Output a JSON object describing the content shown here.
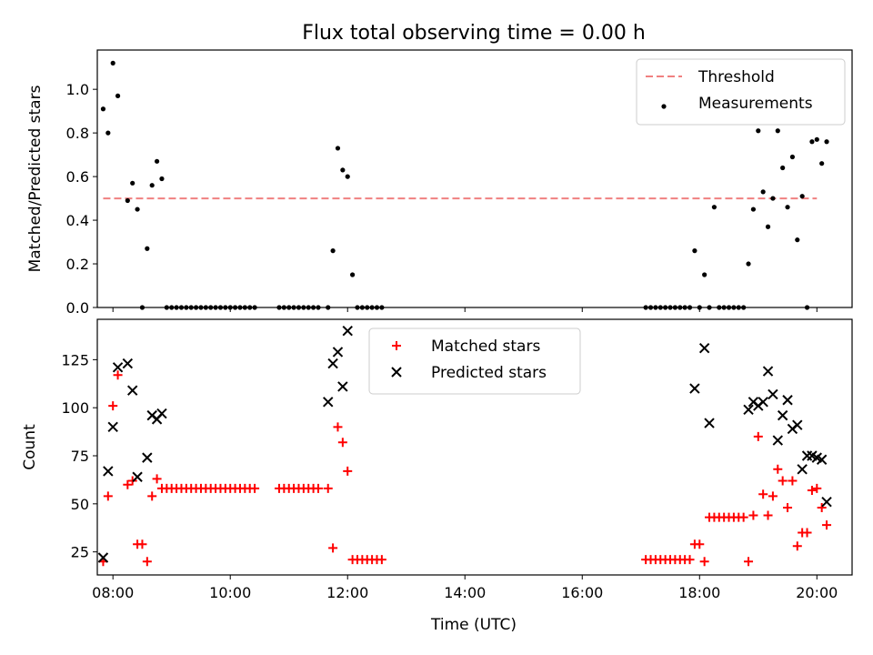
{
  "chart_data": {
    "title": "Flux total observing time = 0.00 h",
    "xlabel": "Time (UTC)",
    "xlim": [
      "07:44",
      "20:36"
    ],
    "x_ticks": [
      "08:00",
      "10:00",
      "12:00",
      "14:00",
      "16:00",
      "18:00",
      "20:00"
    ],
    "panels": [
      {
        "type": "scatter",
        "ylabel": "Matched/Predicted stars",
        "ylim": [
          0,
          1.18
        ],
        "y_ticks": [
          "0.0",
          "0.2",
          "0.4",
          "0.6",
          "0.8",
          "1.0"
        ],
        "legend_position": "upper right",
        "threshold": {
          "name": "Threshold",
          "value": 0.5,
          "x_range": [
            "07:50",
            "20:00"
          ],
          "color": "#f08080",
          "style": "dashed"
        },
        "series": [
          {
            "name": "Measurements",
            "marker": "dot",
            "color": "#000000",
            "points": [
              [
                "07:50",
                0.91
              ],
              [
                "07:55",
                0.8
              ],
              [
                "08:00",
                1.12
              ],
              [
                "08:05",
                0.97
              ],
              [
                "08:15",
                0.49
              ],
              [
                "08:20",
                0.57
              ],
              [
                "08:25",
                0.45
              ],
              [
                "08:30",
                0.0
              ],
              [
                "08:35",
                0.27
              ],
              [
                "08:40",
                0.56
              ],
              [
                "08:45",
                0.67
              ],
              [
                "08:50",
                0.59
              ],
              [
                "08:55",
                0.0
              ],
              [
                "09:00",
                0.0
              ],
              [
                "09:05",
                0.0
              ],
              [
                "09:10",
                0.0
              ],
              [
                "09:15",
                0.0
              ],
              [
                "09:20",
                0.0
              ],
              [
                "09:25",
                0.0
              ],
              [
                "09:30",
                0.0
              ],
              [
                "09:35",
                0.0
              ],
              [
                "09:40",
                0.0
              ],
              [
                "09:45",
                0.0
              ],
              [
                "09:50",
                0.0
              ],
              [
                "09:55",
                0.0
              ],
              [
                "10:00",
                0.0
              ],
              [
                "10:05",
                0.0
              ],
              [
                "10:10",
                0.0
              ],
              [
                "10:15",
                0.0
              ],
              [
                "10:20",
                0.0
              ],
              [
                "10:25",
                0.0
              ],
              [
                "10:50",
                0.0
              ],
              [
                "10:55",
                0.0
              ],
              [
                "11:00",
                0.0
              ],
              [
                "11:05",
                0.0
              ],
              [
                "11:10",
                0.0
              ],
              [
                "11:15",
                0.0
              ],
              [
                "11:20",
                0.0
              ],
              [
                "11:25",
                0.0
              ],
              [
                "11:30",
                0.0
              ],
              [
                "11:40",
                0.0
              ],
              [
                "11:45",
                0.26
              ],
              [
                "11:50",
                0.73
              ],
              [
                "11:55",
                0.63
              ],
              [
                "12:00",
                0.6
              ],
              [
                "12:05",
                0.15
              ],
              [
                "12:10",
                0.0
              ],
              [
                "12:15",
                0.0
              ],
              [
                "12:20",
                0.0
              ],
              [
                "12:25",
                0.0
              ],
              [
                "12:30",
                0.0
              ],
              [
                "12:35",
                0.0
              ],
              [
                "17:05",
                0.0
              ],
              [
                "17:10",
                0.0
              ],
              [
                "17:15",
                0.0
              ],
              [
                "17:20",
                0.0
              ],
              [
                "17:25",
                0.0
              ],
              [
                "17:30",
                0.0
              ],
              [
                "17:35",
                0.0
              ],
              [
                "17:40",
                0.0
              ],
              [
                "17:45",
                0.0
              ],
              [
                "17:50",
                0.0
              ],
              [
                "17:55",
                0.26
              ],
              [
                "18:00",
                0.0
              ],
              [
                "18:05",
                0.15
              ],
              [
                "18:10",
                0.0
              ],
              [
                "18:15",
                0.46
              ],
              [
                "18:20",
                0.0
              ],
              [
                "18:25",
                0.0
              ],
              [
                "18:30",
                0.0
              ],
              [
                "18:35",
                0.0
              ],
              [
                "18:40",
                0.0
              ],
              [
                "18:45",
                0.0
              ],
              [
                "18:50",
                0.2
              ],
              [
                "18:55",
                0.45
              ],
              [
                "19:00",
                0.81
              ],
              [
                "19:05",
                0.53
              ],
              [
                "19:10",
                0.37
              ],
              [
                "19:15",
                0.5
              ],
              [
                "19:20",
                0.81
              ],
              [
                "19:25",
                0.64
              ],
              [
                "19:30",
                0.46
              ],
              [
                "19:35",
                0.69
              ],
              [
                "19:40",
                0.31
              ],
              [
                "19:45",
                0.51
              ],
              [
                "19:50",
                0.0
              ],
              [
                "19:55",
                0.76
              ],
              [
                "20:00",
                0.77
              ],
              [
                "20:05",
                0.66
              ],
              [
                "20:10",
                0.76
              ]
            ]
          }
        ]
      },
      {
        "type": "scatter",
        "ylabel": "Count",
        "ylim": [
          13,
          146
        ],
        "y_ticks": [
          "25",
          "50",
          "75",
          "100",
          "125"
        ],
        "legend_position": "upper center",
        "series": [
          {
            "name": "Matched stars",
            "marker": "plus",
            "color": "#ff0000",
            "points": [
              [
                "07:50",
                20
              ],
              [
                "07:55",
                54
              ],
              [
                "08:00",
                101
              ],
              [
                "08:05",
                117
              ],
              [
                "08:15",
                60
              ],
              [
                "08:20",
                62
              ],
              [
                "08:25",
                29
              ],
              [
                "08:30",
                29
              ],
              [
                "08:35",
                20
              ],
              [
                "08:40",
                54
              ],
              [
                "08:45",
                63
              ],
              [
                "08:50",
                58
              ],
              [
                "08:55",
                58
              ],
              [
                "09:00",
                58
              ],
              [
                "09:05",
                58
              ],
              [
                "09:10",
                58
              ],
              [
                "09:15",
                58
              ],
              [
                "09:20",
                58
              ],
              [
                "09:25",
                58
              ],
              [
                "09:30",
                58
              ],
              [
                "09:35",
                58
              ],
              [
                "09:40",
                58
              ],
              [
                "09:45",
                58
              ],
              [
                "09:50",
                58
              ],
              [
                "09:55",
                58
              ],
              [
                "10:00",
                58
              ],
              [
                "10:05",
                58
              ],
              [
                "10:10",
                58
              ],
              [
                "10:15",
                58
              ],
              [
                "10:20",
                58
              ],
              [
                "10:25",
                58
              ],
              [
                "10:50",
                58
              ],
              [
                "10:55",
                58
              ],
              [
                "11:00",
                58
              ],
              [
                "11:05",
                58
              ],
              [
                "11:10",
                58
              ],
              [
                "11:15",
                58
              ],
              [
                "11:20",
                58
              ],
              [
                "11:25",
                58
              ],
              [
                "11:30",
                58
              ],
              [
                "11:40",
                58
              ],
              [
                "11:45",
                27
              ],
              [
                "11:50",
                90
              ],
              [
                "11:55",
                82
              ],
              [
                "12:00",
                67
              ],
              [
                "12:05",
                21
              ],
              [
                "12:10",
                21
              ],
              [
                "12:15",
                21
              ],
              [
                "12:20",
                21
              ],
              [
                "12:25",
                21
              ],
              [
                "12:30",
                21
              ],
              [
                "12:35",
                21
              ],
              [
                "17:05",
                21
              ],
              [
                "17:10",
                21
              ],
              [
                "17:15",
                21
              ],
              [
                "17:20",
                21
              ],
              [
                "17:25",
                21
              ],
              [
                "17:30",
                21
              ],
              [
                "17:35",
                21
              ],
              [
                "17:40",
                21
              ],
              [
                "17:45",
                21
              ],
              [
                "17:50",
                21
              ],
              [
                "17:55",
                29
              ],
              [
                "18:00",
                29
              ],
              [
                "18:05",
                20
              ],
              [
                "18:10",
                43
              ],
              [
                "18:15",
                43
              ],
              [
                "18:20",
                43
              ],
              [
                "18:25",
                43
              ],
              [
                "18:30",
                43
              ],
              [
                "18:35",
                43
              ],
              [
                "18:40",
                43
              ],
              [
                "18:45",
                43
              ],
              [
                "18:50",
                20
              ],
              [
                "18:55",
                44
              ],
              [
                "19:00",
                85
              ],
              [
                "19:05",
                55
              ],
              [
                "19:10",
                44
              ],
              [
                "19:15",
                54
              ],
              [
                "19:20",
                68
              ],
              [
                "19:25",
                62
              ],
              [
                "19:30",
                48
              ],
              [
                "19:35",
                62
              ],
              [
                "19:40",
                28
              ],
              [
                "19:45",
                35
              ],
              [
                "19:50",
                35
              ],
              [
                "19:55",
                57
              ],
              [
                "20:00",
                58
              ],
              [
                "20:05",
                48
              ],
              [
                "20:10",
                39
              ]
            ]
          },
          {
            "name": "Predicted stars",
            "marker": "x",
            "color": "#000000",
            "points": [
              [
                "07:50",
                22
              ],
              [
                "07:55",
                67
              ],
              [
                "08:00",
                90
              ],
              [
                "08:05",
                121
              ],
              [
                "08:15",
                123
              ],
              [
                "08:20",
                109
              ],
              [
                "08:25",
                64
              ],
              [
                "08:35",
                74
              ],
              [
                "08:40",
                96
              ],
              [
                "08:45",
                94
              ],
              [
                "08:50",
                97
              ],
              [
                "11:40",
                103
              ],
              [
                "11:45",
                123
              ],
              [
                "11:50",
                129
              ],
              [
                "11:55",
                111
              ],
              [
                "12:00",
                140
              ],
              [
                "17:55",
                110
              ],
              [
                "18:05",
                131
              ],
              [
                "18:10",
                92
              ],
              [
                "18:50",
                99
              ],
              [
                "18:55",
                103
              ],
              [
                "19:00",
                101
              ],
              [
                "19:05",
                103
              ],
              [
                "19:10",
                119
              ],
              [
                "19:15",
                107
              ],
              [
                "19:20",
                83
              ],
              [
                "19:25",
                96
              ],
              [
                "19:30",
                104
              ],
              [
                "19:35",
                89
              ],
              [
                "19:40",
                91
              ],
              [
                "19:45",
                68
              ],
              [
                "19:50",
                75
              ],
              [
                "19:55",
                75
              ],
              [
                "20:00",
                74
              ],
              [
                "20:05",
                73
              ],
              [
                "20:10",
                51
              ]
            ]
          }
        ]
      }
    ]
  }
}
